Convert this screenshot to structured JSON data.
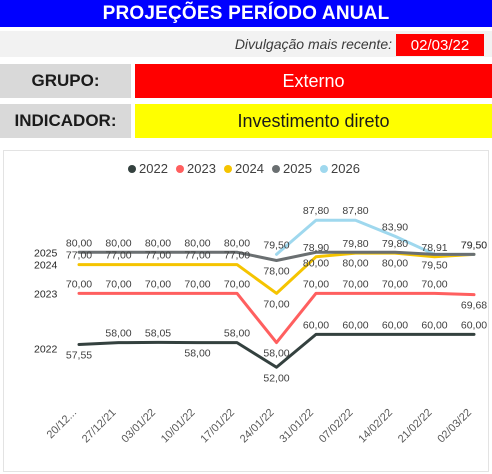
{
  "header": {
    "title": "PROJEÇÕES PERÍODO ANUAL",
    "release_label": "Divulgação mais recente:",
    "release_date": "02/03/22"
  },
  "grupo": {
    "label": "GRUPO:",
    "value": "Externo"
  },
  "indicador": {
    "label": "INDICADOR:",
    "value": "Investimento direto"
  },
  "colors": {
    "title_bg": "#0000ff",
    "grupo_bg": "#ff0000",
    "indicador_bg": "#ffff00",
    "s2022": "#34413f",
    "s2023": "#ff5f5f",
    "s2024": "#f5c400",
    "s2025": "#6a6f71",
    "s2026": "#9fd8ee"
  },
  "chart_data": {
    "type": "line",
    "x": [
      "20/12...",
      "27/12/21",
      "03/01/22",
      "10/01/22",
      "17/01/22",
      "24/01/22",
      "31/01/22",
      "07/02/22",
      "14/02/22",
      "21/02/22",
      "02/03/22"
    ],
    "ylim": [
      45,
      92
    ],
    "grid": false,
    "legend_position": "top",
    "series": [
      {
        "name": "2022",
        "color": "#34413f",
        "row_label": "2022",
        "values": [
          57.55,
          58.0,
          58.05,
          58.0,
          58.0,
          52.0,
          60.0,
          60.0,
          60.0,
          60.0,
          60.0
        ],
        "labels": [
          "57,55",
          "58,00",
          "58,05",
          "58,00",
          "58,00",
          "52,00",
          "60,00",
          "60,00",
          "60,00",
          "60,00",
          "60,00"
        ],
        "label_pos": [
          "below",
          "above",
          "above",
          "below",
          "above",
          "below",
          "above",
          "above",
          "above",
          "above",
          "above"
        ]
      },
      {
        "name": "2023",
        "color": "#ff5f5f",
        "row_label": "2023",
        "values": [
          70.0,
          70.0,
          70.0,
          70.0,
          70.0,
          58.0,
          70.0,
          70.0,
          70.0,
          70.0,
          69.68
        ],
        "labels": [
          "70,00",
          "70,00",
          "70,00",
          "70,00",
          "70,00",
          "58,00",
          "70,00",
          "70,00",
          "70,00",
          "70,00",
          "69,68"
        ],
        "label_pos": [
          "above",
          "above",
          "above",
          "above",
          "above",
          "below",
          "above",
          "above",
          "above",
          "above",
          "below"
        ]
      },
      {
        "name": "2024",
        "color": "#f5c400",
        "row_label": "2024",
        "values": [
          77.0,
          77.0,
          77.0,
          77.0,
          77.0,
          70.0,
          78.9,
          79.8,
          79.8,
          78.91,
          79.5
        ],
        "labels": [
          "77,00",
          "77,00",
          "77,00",
          "77,00",
          "77,00",
          "70,00",
          "78,90",
          "79,80",
          "79,80",
          "78,91",
          "79,50"
        ],
        "label_pos": [
          "above",
          "above",
          "above",
          "above",
          "above",
          "below",
          "above",
          "above",
          "above",
          "above",
          "above"
        ]
      },
      {
        "name": "2025",
        "color": "#6a6f71",
        "row_label": "2025",
        "values": [
          80.0,
          80.0,
          80.0,
          80.0,
          80.0,
          78.0,
          80.0,
          80.0,
          80.0,
          79.5,
          79.5
        ],
        "labels": [
          "80,00",
          "80,00",
          "80,00",
          "80,00",
          "80,00",
          "78,00",
          "80,00",
          "80,00",
          "80,00",
          "79,50",
          null
        ],
        "label_pos": [
          "above",
          "above",
          "above",
          "above",
          "above",
          "below",
          "below",
          "below",
          "below",
          "below",
          "none"
        ]
      },
      {
        "name": "2026",
        "color": "#9fd8ee",
        "row_label": null,
        "values": [
          null,
          null,
          null,
          null,
          null,
          79.5,
          87.8,
          87.8,
          83.9,
          79.5,
          79.5
        ],
        "labels": [
          null,
          null,
          null,
          null,
          null,
          "79,50",
          "87,80",
          "87,80",
          "83,90",
          null,
          "79,50"
        ],
        "label_pos": [
          "none",
          "none",
          "none",
          "none",
          "none",
          "above",
          "above",
          "above",
          "above",
          "none",
          "above"
        ]
      }
    ]
  }
}
